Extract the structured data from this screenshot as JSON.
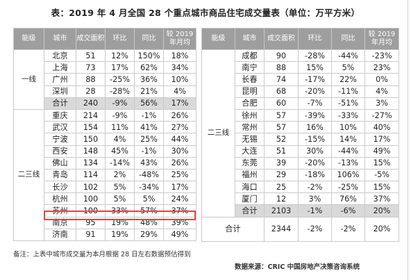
{
  "title": "表：2019 年 4 月全国 28 个重点城市商品住宅成交量表（单位：万平方米）",
  "headers": [
    "能级",
    "城市",
    "成交面积",
    "环比",
    "同比",
    "较 2019 年月均"
  ],
  "left_table": {
    "groups": [
      {
        "level": "一线",
        "rows": [
          [
            "北京",
            "51",
            "12%",
            "150%",
            "18%"
          ],
          [
            "上海",
            "73",
            "17%",
            "62%",
            "34%"
          ],
          [
            "广州",
            "88",
            "-25%",
            "36%",
            "10%"
          ],
          [
            "深圳",
            "28",
            "-28%",
            "21%",
            "4%"
          ],
          [
            "合计",
            "240",
            "-9%",
            "56%",
            "17%"
          ]
        ]
      },
      {
        "level": "二三线",
        "rows": [
          [
            "重庆",
            "214",
            "-9%",
            "-1%",
            "26%"
          ],
          [
            "武汉",
            "154",
            "11%",
            "41%",
            "27%"
          ],
          [
            "宁波",
            "150",
            "4%",
            "25%",
            "44%"
          ],
          [
            "西安",
            "148",
            "45%",
            "-1%",
            "30%"
          ],
          [
            "佛山",
            "134",
            "-14%",
            "43%",
            "26%"
          ],
          [
            "青岛",
            "114",
            "2%",
            "-48%",
            "25%"
          ],
          [
            "长沙",
            "102",
            "5%",
            "-34%",
            "17%"
          ],
          [
            "杭州",
            "100",
            "5%",
            "5%",
            "24%"
          ],
          [
            "苏州",
            "100",
            "33%",
            "57%",
            "37%"
          ],
          [
            "南京",
            "95",
            "19%",
            "48%",
            "39%"
          ],
          [
            "济南",
            "91",
            "19%",
            "29%",
            "49%"
          ]
        ]
      }
    ]
  },
  "right_table": {
    "level": "二三线",
    "rows": [
      [
        "成都",
        "90",
        "-28%",
        "-44%",
        "-23%"
      ],
      [
        "南宁",
        "88",
        "15%",
        "5%",
        "23%"
      ],
      [
        "长春",
        "74",
        "-17%",
        "22%",
        "0%"
      ],
      [
        "昆明",
        "68",
        "-20%",
        "-11%",
        "4%"
      ],
      [
        "合肥",
        "60",
        "-7%",
        "-51%",
        "3%"
      ],
      [
        "徐州",
        "57",
        "-39%",
        "-33%",
        "-27%"
      ],
      [
        "常州",
        "57",
        "16%",
        "10%",
        "40%"
      ],
      [
        "无锡",
        "52",
        "-15%",
        "14%",
        "17%"
      ],
      [
        "大连",
        "51",
        "30%",
        "-44%",
        "49%"
      ],
      [
        "东莞",
        "39",
        "-20%",
        "-13%",
        "15%"
      ],
      [
        "福州",
        "29",
        "-18%",
        "106%",
        "-5%"
      ],
      [
        "海口",
        "25",
        "-2%",
        "-25%",
        "15%"
      ],
      [
        "厦门",
        "12",
        "3%",
        "76%",
        "37%"
      ],
      [
        "合计",
        "2103",
        "-1%",
        "-6%",
        "20%"
      ]
    ],
    "total_row": [
      "合计",
      "2344",
      "-2%",
      "-2%",
      "20%"
    ]
  },
  "note": "备注：上表中城市成交量为本月根据 28 日左右数据预估得到",
  "source": "数据来源：CRIC 中国房地产决策咨询系统",
  "colors": {
    "header_bg": "#9e9e9e",
    "subtotal_bg": "#d9d9d9",
    "highlight": "#e0473c"
  }
}
